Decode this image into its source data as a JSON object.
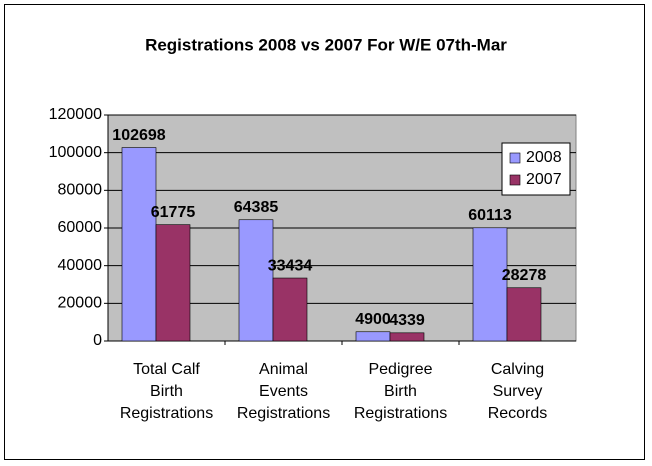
{
  "chart_data": {
    "type": "bar",
    "title": "Registrations 2008 vs 2007 For W/E 07th-Mar",
    "categories": [
      "Total Calf Birth Registrations",
      "Animal Events Registrations",
      "Pedigree Birth Registrations",
      "Calving Survey Records"
    ],
    "series": [
      {
        "name": "2008",
        "color": "#9999ff",
        "values": [
          102698,
          64385,
          4900,
          60113
        ]
      },
      {
        "name": "2007",
        "color": "#993366",
        "values": [
          61775,
          33434,
          4339,
          28278
        ]
      }
    ],
    "ylim": [
      0,
      120000
    ],
    "yticks": [
      0,
      20000,
      40000,
      60000,
      80000,
      100000,
      120000
    ],
    "grid": true,
    "legend": "top-right"
  }
}
